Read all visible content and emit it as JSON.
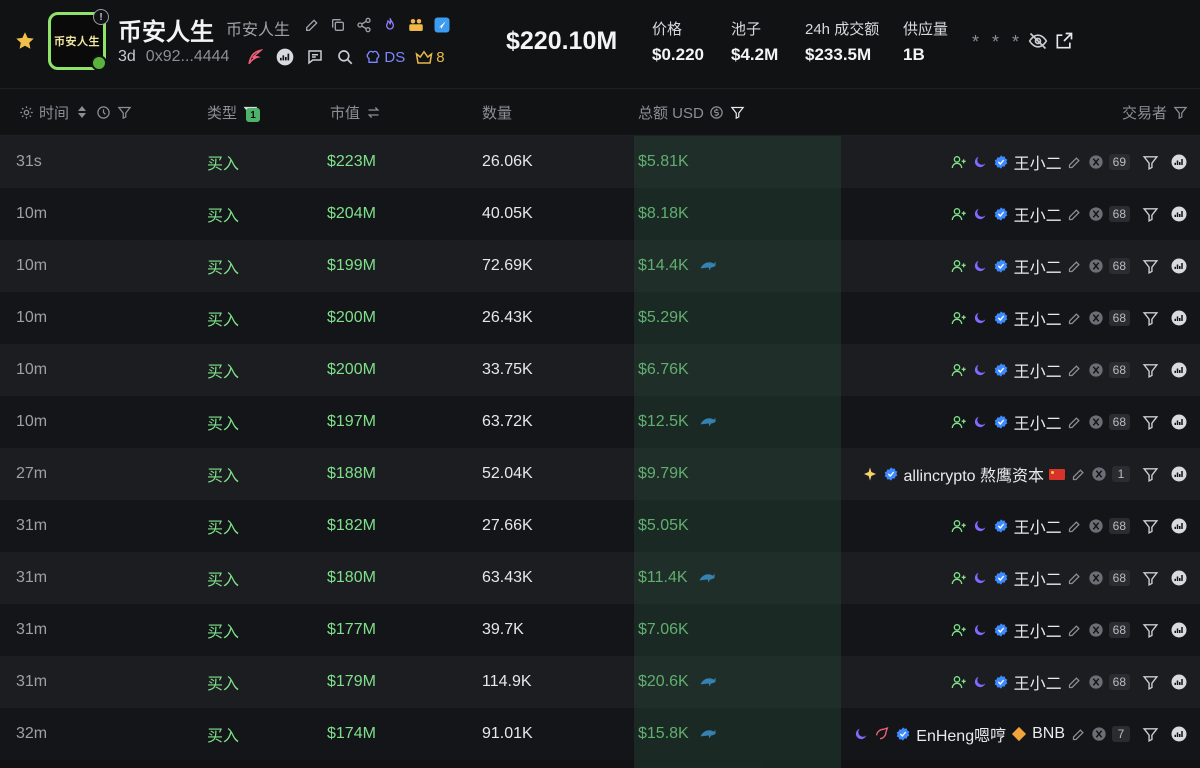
{
  "header": {
    "logo_text": "币安人生",
    "logo_info": "!",
    "token_name": "币安人生",
    "token_sub": "币安人生",
    "age": "3d",
    "address": "0x92...4444",
    "ds_label": "DS",
    "crown_count": "8",
    "market_cap": "$220.10M",
    "stats": [
      {
        "label": "价格",
        "value": "$0.220"
      },
      {
        "label": "池子",
        "value": "$4.2M"
      },
      {
        "label": "24h 成交额",
        "value": "$233.5M"
      },
      {
        "label": "供应量",
        "value": "1B"
      }
    ],
    "masked": "* * *"
  },
  "table": {
    "headers": {
      "time": "时间",
      "type": "类型",
      "type_filter_count": "1",
      "mcap": "市值",
      "qty": "数量",
      "total": "总额 USD",
      "trader": "交易者"
    },
    "rows": [
      {
        "time": "31s",
        "type": "买入",
        "mcap": "$223M",
        "qty": "26.06K",
        "total": "$5.81K",
        "dolphin": false,
        "trader": "王小二",
        "trader_kind": "standard",
        "count": "69"
      },
      {
        "time": "10m",
        "type": "买入",
        "mcap": "$204M",
        "qty": "40.05K",
        "total": "$8.18K",
        "dolphin": false,
        "trader": "王小二",
        "trader_kind": "standard",
        "count": "68"
      },
      {
        "time": "10m",
        "type": "买入",
        "mcap": "$199M",
        "qty": "72.69K",
        "total": "$14.4K",
        "dolphin": true,
        "trader": "王小二",
        "trader_kind": "standard",
        "count": "68"
      },
      {
        "time": "10m",
        "type": "买入",
        "mcap": "$200M",
        "qty": "26.43K",
        "total": "$5.29K",
        "dolphin": false,
        "trader": "王小二",
        "trader_kind": "standard",
        "count": "68"
      },
      {
        "time": "10m",
        "type": "买入",
        "mcap": "$200M",
        "qty": "33.75K",
        "total": "$6.76K",
        "dolphin": false,
        "trader": "王小二",
        "trader_kind": "standard",
        "count": "68"
      },
      {
        "time": "10m",
        "type": "买入",
        "mcap": "$197M",
        "qty": "63.72K",
        "total": "$12.5K",
        "dolphin": true,
        "trader": "王小二",
        "trader_kind": "standard",
        "count": "68"
      },
      {
        "time": "27m",
        "type": "买入",
        "mcap": "$188M",
        "qty": "52.04K",
        "total": "$9.79K",
        "dolphin": false,
        "trader": "allincrypto 熬鹰资本",
        "trader_kind": "allin",
        "count": "1"
      },
      {
        "time": "31m",
        "type": "买入",
        "mcap": "$182M",
        "qty": "27.66K",
        "total": "$5.05K",
        "dolphin": false,
        "trader": "王小二",
        "trader_kind": "standard",
        "count": "68"
      },
      {
        "time": "31m",
        "type": "买入",
        "mcap": "$180M",
        "qty": "63.43K",
        "total": "$11.4K",
        "dolphin": true,
        "trader": "王小二",
        "trader_kind": "standard",
        "count": "68"
      },
      {
        "time": "31m",
        "type": "买入",
        "mcap": "$177M",
        "qty": "39.7K",
        "total": "$7.06K",
        "dolphin": false,
        "trader": "王小二",
        "trader_kind": "standard",
        "count": "68"
      },
      {
        "time": "31m",
        "type": "买入",
        "mcap": "$179M",
        "qty": "114.9K",
        "total": "$20.6K",
        "dolphin": true,
        "trader": "王小二",
        "trader_kind": "standard",
        "count": "68"
      },
      {
        "time": "32m",
        "type": "买入",
        "mcap": "$174M",
        "qty": "91.01K",
        "total": "$15.8K",
        "dolphin": true,
        "trader": "EnHeng嗯哼",
        "trader_kind": "enheng",
        "trader_suffix": "BNB",
        "count": "7"
      }
    ]
  },
  "colors": {
    "buy_green": "#7ee08a",
    "accent_purple": "#7d86ff",
    "verified_blue": "#3d8bff",
    "crown_gold": "#e7b84a"
  }
}
